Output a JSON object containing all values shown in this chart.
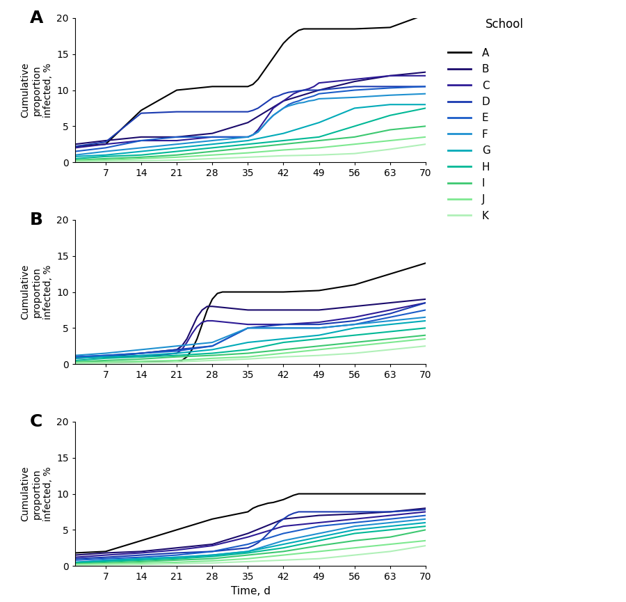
{
  "school_labels": [
    "A",
    "B",
    "C",
    "D",
    "E",
    "F",
    "G",
    "H",
    "I",
    "J",
    "K"
  ],
  "colors": [
    "#000000",
    "#1a0a6b",
    "#2d1b96",
    "#1a3ab0",
    "#1a5cc8",
    "#1e90d0",
    "#00aab8",
    "#00b896",
    "#3cc870",
    "#7de890",
    "#b0f0b8"
  ],
  "linewidth": 1.5,
  "panel_labels": [
    "A",
    "B",
    "C"
  ],
  "xlabel": "Time, d",
  "ylabel": "Cumulative\nproportion\ninfected, %",
  "xticks": [
    7,
    14,
    21,
    28,
    35,
    42,
    49,
    56,
    63,
    70
  ],
  "yticks": [
    0,
    5,
    10,
    15,
    20
  ],
  "ylim": [
    0,
    20
  ],
  "xlim": [
    1,
    70
  ],
  "scenario_A": {
    "A": {
      "x": [
        1,
        7,
        14,
        21,
        28,
        35,
        36,
        37,
        38,
        39,
        40,
        41,
        42,
        43,
        44,
        45,
        46,
        47,
        48,
        49,
        56,
        63,
        70
      ],
      "y": [
        2.2,
        2.5,
        7.2,
        10.0,
        10.5,
        10.5,
        10.8,
        11.5,
        12.5,
        13.5,
        14.5,
        15.5,
        16.5,
        17.2,
        17.8,
        18.3,
        18.5,
        18.5,
        18.5,
        18.5,
        18.5,
        18.7,
        20.5
      ]
    },
    "B": {
      "x": [
        1,
        7,
        14,
        21,
        28,
        35,
        42,
        49,
        56,
        63,
        70
      ],
      "y": [
        2.5,
        3.0,
        3.5,
        3.5,
        4.0,
        5.5,
        8.5,
        10.0,
        11.2,
        12.0,
        12.5
      ]
    },
    "C": {
      "x": [
        1,
        7,
        14,
        21,
        28,
        35,
        36,
        37,
        38,
        39,
        40,
        41,
        42,
        43,
        44,
        45,
        46,
        47,
        48,
        49,
        56,
        63,
        70
      ],
      "y": [
        2.0,
        2.5,
        3.0,
        3.0,
        3.5,
        3.5,
        3.8,
        4.5,
        5.5,
        6.5,
        7.5,
        8.0,
        8.5,
        9.0,
        9.5,
        9.8,
        10.0,
        10.2,
        10.5,
        11.0,
        11.5,
        12.0,
        12.0
      ]
    },
    "D": {
      "x": [
        1,
        7,
        14,
        21,
        28,
        35,
        36,
        37,
        38,
        39,
        40,
        41,
        42,
        43,
        44,
        45,
        46,
        47,
        48,
        49,
        56,
        63,
        70
      ],
      "y": [
        2.2,
        2.8,
        6.8,
        7.0,
        7.0,
        7.0,
        7.2,
        7.5,
        8.0,
        8.5,
        9.0,
        9.2,
        9.5,
        9.7,
        9.8,
        9.9,
        10.0,
        10.0,
        10.0,
        10.0,
        10.5,
        10.5,
        10.5
      ]
    },
    "E": {
      "x": [
        1,
        7,
        14,
        21,
        28,
        35,
        36,
        37,
        38,
        39,
        40,
        41,
        42,
        43,
        44,
        45,
        46,
        47,
        48,
        49,
        56,
        63,
        70
      ],
      "y": [
        1.5,
        2.0,
        3.0,
        3.5,
        3.5,
        3.5,
        3.8,
        4.2,
        5.0,
        5.8,
        6.5,
        7.0,
        7.5,
        8.0,
        8.3,
        8.5,
        8.8,
        9.0,
        9.2,
        9.5,
        10.0,
        10.3,
        10.5
      ]
    },
    "F": {
      "x": [
        1,
        7,
        14,
        21,
        28,
        35,
        36,
        37,
        38,
        39,
        40,
        41,
        42,
        43,
        44,
        45,
        46,
        47,
        48,
        49,
        56,
        63,
        70
      ],
      "y": [
        1.0,
        1.5,
        2.0,
        2.5,
        3.0,
        3.5,
        3.8,
        4.2,
        5.0,
        5.8,
        6.5,
        7.0,
        7.5,
        7.8,
        8.0,
        8.2,
        8.3,
        8.5,
        8.6,
        8.8,
        9.0,
        9.3,
        9.5
      ]
    },
    "G": {
      "x": [
        1,
        7,
        14,
        21,
        28,
        35,
        42,
        49,
        56,
        63,
        70
      ],
      "y": [
        0.8,
        1.0,
        1.5,
        2.0,
        2.5,
        3.0,
        4.0,
        5.5,
        7.5,
        8.0,
        8.0
      ]
    },
    "H": {
      "x": [
        1,
        7,
        14,
        21,
        28,
        35,
        42,
        49,
        56,
        63,
        70
      ],
      "y": [
        0.5,
        0.8,
        1.0,
        1.5,
        2.0,
        2.5,
        3.0,
        3.5,
        5.0,
        6.5,
        7.5
      ]
    },
    "I": {
      "x": [
        1,
        7,
        14,
        21,
        28,
        35,
        42,
        49,
        56,
        63,
        70
      ],
      "y": [
        0.3,
        0.5,
        0.7,
        1.0,
        1.5,
        2.0,
        2.5,
        3.0,
        3.5,
        4.5,
        5.0
      ]
    },
    "J": {
      "x": [
        1,
        7,
        14,
        21,
        28,
        35,
        42,
        49,
        56,
        63,
        70
      ],
      "y": [
        0.2,
        0.3,
        0.5,
        0.7,
        1.0,
        1.3,
        1.7,
        2.0,
        2.5,
        3.0,
        3.5
      ]
    },
    "K": {
      "x": [
        1,
        7,
        14,
        21,
        28,
        35,
        42,
        49,
        56,
        63,
        70
      ],
      "y": [
        0.1,
        0.15,
        0.2,
        0.3,
        0.5,
        0.7,
        0.9,
        1.0,
        1.2,
        1.8,
        2.5
      ]
    }
  },
  "scenario_B": {
    "A": {
      "x": [
        1,
        7,
        14,
        21,
        22,
        23,
        24,
        25,
        26,
        27,
        28,
        29,
        30,
        31,
        32,
        33,
        34,
        35,
        42,
        49,
        56,
        63,
        70
      ],
      "y": [
        0.3,
        0.3,
        0.3,
        0.3,
        0.5,
        1.0,
        2.0,
        3.5,
        5.5,
        7.5,
        9.0,
        9.8,
        10.0,
        10.0,
        10.0,
        10.0,
        10.0,
        10.0,
        10.0,
        10.2,
        11.0,
        12.5,
        14.0
      ]
    },
    "B": {
      "x": [
        1,
        7,
        14,
        21,
        22,
        23,
        24,
        25,
        26,
        27,
        28,
        35,
        42,
        49,
        56,
        63,
        70
      ],
      "y": [
        1.0,
        1.0,
        1.5,
        2.0,
        2.5,
        3.5,
        5.0,
        6.5,
        7.5,
        8.0,
        8.0,
        7.5,
        7.5,
        7.5,
        8.0,
        8.5,
        9.0
      ]
    },
    "C": {
      "x": [
        1,
        7,
        14,
        21,
        22,
        23,
        24,
        25,
        26,
        27,
        28,
        35,
        42,
        49,
        56,
        63,
        70
      ],
      "y": [
        0.8,
        1.0,
        1.0,
        1.5,
        2.0,
        3.0,
        4.2,
        5.2,
        5.8,
        6.0,
        6.0,
        5.5,
        5.5,
        5.8,
        6.5,
        7.5,
        8.5
      ]
    },
    "D": {
      "x": [
        1,
        7,
        14,
        21,
        28,
        35,
        42,
        49,
        56,
        63,
        70
      ],
      "y": [
        1.0,
        1.2,
        1.5,
        2.0,
        2.5,
        5.0,
        5.5,
        5.5,
        6.0,
        7.0,
        8.5
      ]
    },
    "E": {
      "x": [
        1,
        7,
        14,
        21,
        28,
        35,
        42,
        49,
        56,
        63,
        70
      ],
      "y": [
        1.0,
        1.2,
        1.5,
        1.8,
        2.5,
        5.0,
        5.0,
        5.0,
        5.5,
        6.5,
        7.5
      ]
    },
    "F": {
      "x": [
        1,
        7,
        14,
        21,
        28,
        35,
        42,
        49,
        56,
        63,
        70
      ],
      "y": [
        1.2,
        1.5,
        2.0,
        2.5,
        3.0,
        5.0,
        5.0,
        5.0,
        5.5,
        6.0,
        6.5
      ]
    },
    "G": {
      "x": [
        1,
        7,
        14,
        21,
        28,
        35,
        42,
        49,
        56,
        63,
        70
      ],
      "y": [
        0.8,
        1.0,
        1.2,
        1.5,
        2.0,
        3.0,
        3.5,
        4.0,
        5.0,
        5.5,
        6.0
      ]
    },
    "H": {
      "x": [
        1,
        7,
        14,
        21,
        28,
        35,
        42,
        49,
        56,
        63,
        70
      ],
      "y": [
        0.5,
        0.8,
        1.0,
        1.2,
        1.5,
        2.0,
        3.0,
        3.5,
        4.0,
        4.5,
        5.0
      ]
    },
    "I": {
      "x": [
        1,
        7,
        14,
        21,
        28,
        35,
        42,
        49,
        56,
        63,
        70
      ],
      "y": [
        0.3,
        0.5,
        0.7,
        1.0,
        1.2,
        1.5,
        2.0,
        2.5,
        3.0,
        3.5,
        4.0
      ]
    },
    "J": {
      "x": [
        1,
        7,
        14,
        21,
        28,
        35,
        42,
        49,
        56,
        63,
        70
      ],
      "y": [
        0.2,
        0.3,
        0.4,
        0.5,
        0.8,
        1.0,
        1.5,
        2.0,
        2.5,
        3.0,
        3.5
      ]
    },
    "K": {
      "x": [
        1,
        7,
        14,
        21,
        28,
        35,
        42,
        49,
        56,
        63,
        70
      ],
      "y": [
        0.1,
        0.15,
        0.2,
        0.3,
        0.5,
        0.7,
        1.0,
        1.2,
        1.5,
        2.0,
        2.5
      ]
    }
  },
  "scenario_C": {
    "A": {
      "x": [
        1,
        7,
        14,
        21,
        28,
        35,
        36,
        37,
        38,
        39,
        40,
        41,
        42,
        43,
        44,
        45,
        46,
        47,
        48,
        49,
        56,
        63,
        70
      ],
      "y": [
        1.8,
        2.0,
        3.5,
        5.0,
        6.5,
        7.5,
        8.0,
        8.3,
        8.5,
        8.7,
        8.8,
        9.0,
        9.2,
        9.5,
        9.8,
        10.0,
        10.0,
        10.0,
        10.0,
        10.0,
        10.0,
        10.0,
        10.0
      ]
    },
    "B": {
      "x": [
        1,
        7,
        14,
        21,
        28,
        35,
        42,
        49,
        56,
        63,
        70
      ],
      "y": [
        1.5,
        1.8,
        2.0,
        2.5,
        3.0,
        4.5,
        6.5,
        7.0,
        7.2,
        7.5,
        8.0
      ]
    },
    "C": {
      "x": [
        1,
        7,
        14,
        21,
        28,
        35,
        42,
        49,
        56,
        63,
        70
      ],
      "y": [
        1.2,
        1.5,
        1.8,
        2.2,
        2.8,
        4.0,
        5.5,
        6.0,
        6.5,
        7.0,
        7.5
      ]
    },
    "D": {
      "x": [
        1,
        7,
        14,
        21,
        28,
        35,
        36,
        37,
        38,
        39,
        40,
        41,
        42,
        43,
        44,
        45,
        46,
        47,
        48,
        49,
        56,
        63,
        70
      ],
      "y": [
        1.0,
        1.2,
        1.5,
        1.8,
        2.0,
        2.5,
        2.8,
        3.2,
        3.8,
        4.5,
        5.2,
        6.0,
        6.5,
        7.0,
        7.3,
        7.5,
        7.5,
        7.5,
        7.5,
        7.5,
        7.5,
        7.5,
        7.8
      ]
    },
    "E": {
      "x": [
        1,
        7,
        14,
        21,
        28,
        35,
        42,
        49,
        56,
        63,
        70
      ],
      "y": [
        0.8,
        1.0,
        1.2,
        1.5,
        2.0,
        3.0,
        4.5,
        5.5,
        6.0,
        6.5,
        7.0
      ]
    },
    "F": {
      "x": [
        1,
        7,
        14,
        21,
        28,
        35,
        42,
        49,
        56,
        63,
        70
      ],
      "y": [
        0.5,
        0.8,
        1.0,
        1.2,
        1.5,
        2.0,
        3.5,
        4.5,
        5.5,
        6.0,
        6.5
      ]
    },
    "G": {
      "x": [
        1,
        7,
        14,
        21,
        28,
        35,
        42,
        49,
        56,
        63,
        70
      ],
      "y": [
        0.5,
        0.7,
        1.0,
        1.2,
        1.5,
        2.0,
        3.0,
        4.0,
        5.0,
        5.5,
        6.0
      ]
    },
    "H": {
      "x": [
        1,
        7,
        14,
        21,
        28,
        35,
        42,
        49,
        56,
        63,
        70
      ],
      "y": [
        0.4,
        0.6,
        0.8,
        1.0,
        1.3,
        1.8,
        2.5,
        3.5,
        4.5,
        5.0,
        5.5
      ]
    },
    "I": {
      "x": [
        1,
        7,
        14,
        21,
        28,
        35,
        42,
        49,
        56,
        63,
        70
      ],
      "y": [
        0.3,
        0.4,
        0.6,
        0.8,
        1.0,
        1.5,
        2.0,
        2.8,
        3.5,
        4.0,
        5.0
      ]
    },
    "J": {
      "x": [
        1,
        7,
        14,
        21,
        28,
        35,
        42,
        49,
        56,
        63,
        70
      ],
      "y": [
        0.2,
        0.3,
        0.4,
        0.5,
        0.7,
        1.0,
        1.5,
        2.0,
        2.5,
        3.0,
        3.5
      ]
    },
    "K": {
      "x": [
        1,
        7,
        14,
        21,
        28,
        35,
        42,
        49,
        56,
        63,
        70
      ],
      "y": [
        0.1,
        0.15,
        0.2,
        0.3,
        0.4,
        0.6,
        0.8,
        1.0,
        1.5,
        2.0,
        2.8
      ]
    }
  },
  "legend_title": "School",
  "figsize": [
    9.0,
    8.65
  ],
  "dpi": 100
}
